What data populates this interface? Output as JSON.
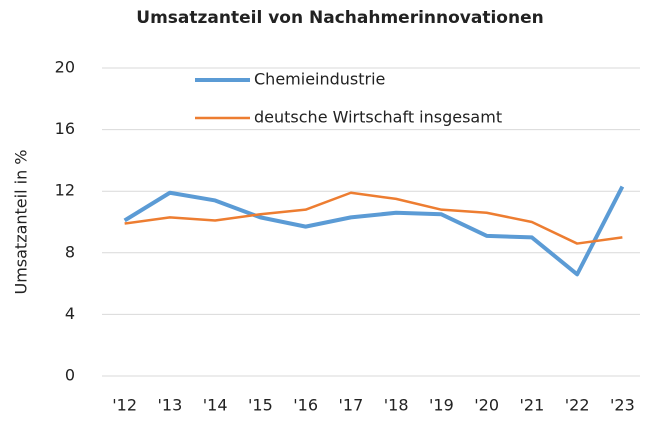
{
  "chart_data": {
    "type": "line",
    "title": "Umsatzanteil von Nachahmerinnovationen",
    "y_label": "Umsatzanteil in %",
    "categories": [
      "'12",
      "'13",
      "'14",
      "'15",
      "'16",
      "'17",
      "'18",
      "'19",
      "'20",
      "'21",
      "'22",
      "'23"
    ],
    "series": [
      {
        "name": "Chemieindustrie",
        "color": "#5b9bd5",
        "values": [
          10.1,
          11.9,
          11.4,
          10.3,
          9.7,
          10.3,
          10.6,
          10.5,
          9.1,
          9.0,
          6.6,
          12.3
        ]
      },
      {
        "name": "deutsche Wirtschaft insgesamt",
        "color": "#ed7d31",
        "values": [
          9.9,
          10.3,
          10.1,
          10.5,
          10.8,
          11.9,
          11.5,
          10.8,
          10.6,
          10.0,
          8.6,
          9.0
        ]
      }
    ],
    "ylim": [
      0,
      20
    ],
    "yticks": [
      0,
      4,
      8,
      12,
      16,
      20
    ],
    "grid": true
  }
}
